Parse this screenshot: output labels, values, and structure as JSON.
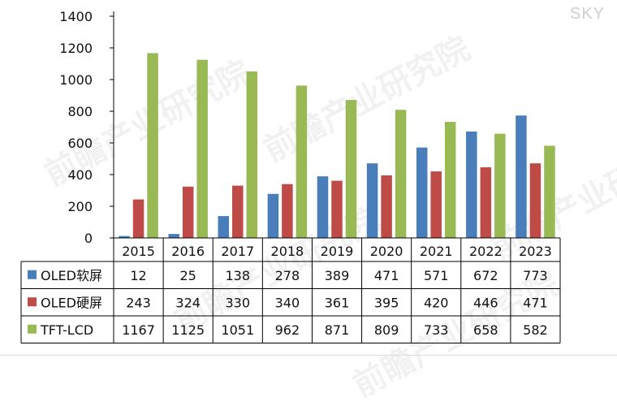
{
  "watermark_text": "前瞻产业研究院",
  "corner_label": "SKY",
  "chart_data": {
    "type": "bar",
    "categories": [
      "2015",
      "2016",
      "2017",
      "2018",
      "2019",
      "2020",
      "2021",
      "2022",
      "2023"
    ],
    "series": [
      {
        "name": "OLED软屏",
        "color": "#4a7ebb",
        "values": [
          12,
          25,
          138,
          278,
          389,
          471,
          571,
          672,
          773
        ]
      },
      {
        "name": "OLED硬屏",
        "color": "#be4b48",
        "values": [
          243,
          324,
          330,
          340,
          361,
          395,
          420,
          446,
          471
        ]
      },
      {
        "name": "TFT-LCD",
        "color": "#98b954",
        "values": [
          1167,
          1125,
          1051,
          962,
          871,
          809,
          733,
          658,
          582
        ]
      }
    ],
    "y_ticks": [
      "0",
      "200",
      "400",
      "600",
      "800",
      "1000",
      "1200",
      "1400"
    ],
    "ylim": [
      0,
      1400
    ],
    "grid": false,
    "legend": "data-table-left"
  }
}
